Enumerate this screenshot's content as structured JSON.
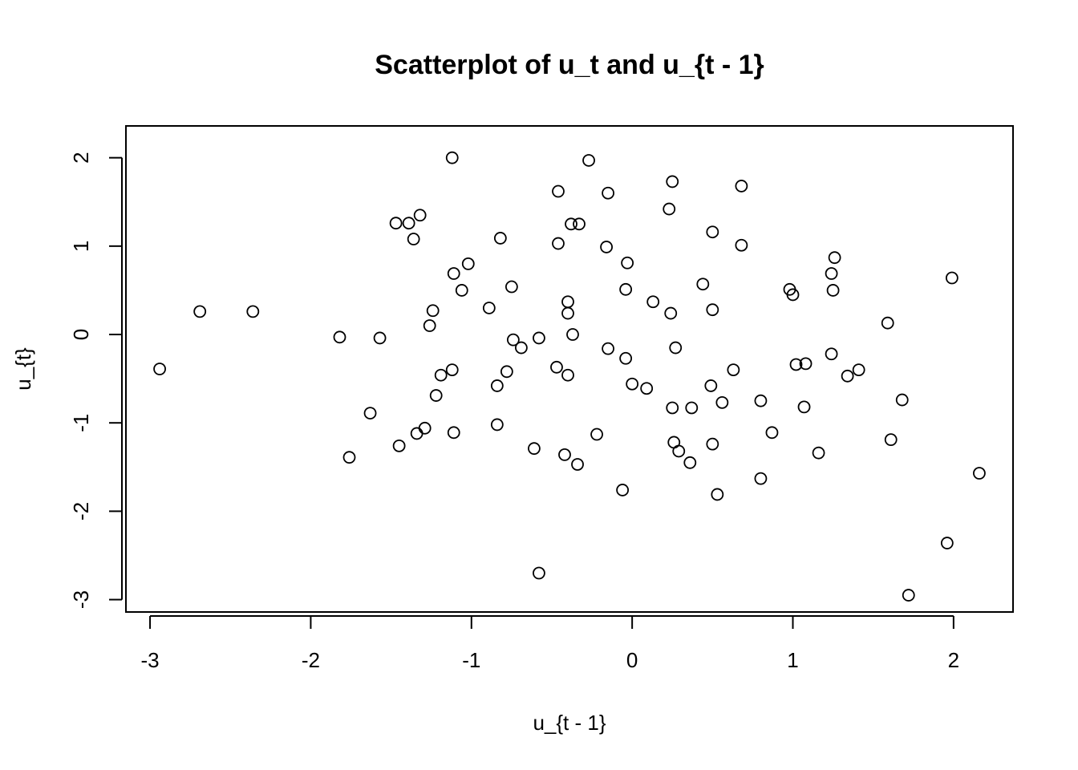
{
  "chart_data": {
    "type": "scatter",
    "title": "Scatterplot of u_t and u_{t - 1}",
    "xlabel": "u_{t - 1}",
    "ylabel": "u_{t}",
    "xlim": [
      -3.15,
      2.37
    ],
    "ylim": [
      -3.14,
      2.36
    ],
    "x_ticks": [
      -3,
      -2,
      -1,
      0,
      1,
      2
    ],
    "x_tick_labels": [
      "-3",
      "-2",
      "-1",
      "0",
      "1",
      "2"
    ],
    "y_ticks": [
      -3,
      -2,
      -1,
      0,
      1,
      2
    ],
    "y_tick_labels": [
      "-3",
      "-2",
      "-1",
      "0",
      "1",
      "2"
    ],
    "grid": false,
    "marker": "open-circle",
    "points": [
      {
        "x": -2.94,
        "y": -0.39
      },
      {
        "x": -2.69,
        "y": 0.26
      },
      {
        "x": -2.36,
        "y": 0.26
      },
      {
        "x": -1.82,
        "y": -0.03
      },
      {
        "x": -1.76,
        "y": -1.39
      },
      {
        "x": -1.63,
        "y": -0.89
      },
      {
        "x": -1.57,
        "y": -0.04
      },
      {
        "x": -1.47,
        "y": 1.26
      },
      {
        "x": -1.45,
        "y": -1.26
      },
      {
        "x": -1.39,
        "y": 1.26
      },
      {
        "x": -1.36,
        "y": 1.08
      },
      {
        "x": -1.34,
        "y": -1.12
      },
      {
        "x": -1.32,
        "y": 1.35
      },
      {
        "x": -1.29,
        "y": -1.06
      },
      {
        "x": -1.26,
        "y": 0.1
      },
      {
        "x": -1.24,
        "y": 0.27
      },
      {
        "x": -1.22,
        "y": -0.69
      },
      {
        "x": -1.19,
        "y": -0.46
      },
      {
        "x": -1.12,
        "y": 2.0
      },
      {
        "x": -1.12,
        "y": -0.4
      },
      {
        "x": -1.11,
        "y": 0.69
      },
      {
        "x": -1.11,
        "y": -1.11
      },
      {
        "x": -1.06,
        "y": 0.5
      },
      {
        "x": -1.02,
        "y": 0.8
      },
      {
        "x": -0.89,
        "y": 0.3
      },
      {
        "x": -0.84,
        "y": -0.58
      },
      {
        "x": -0.84,
        "y": -1.02
      },
      {
        "x": -0.82,
        "y": 1.09
      },
      {
        "x": -0.78,
        "y": -0.42
      },
      {
        "x": -0.75,
        "y": 0.54
      },
      {
        "x": -0.74,
        "y": -0.06
      },
      {
        "x": -0.69,
        "y": -0.15
      },
      {
        "x": -0.61,
        "y": -1.29
      },
      {
        "x": -0.58,
        "y": -0.04
      },
      {
        "x": -0.58,
        "y": -2.7
      },
      {
        "x": -0.47,
        "y": -0.37
      },
      {
        "x": -0.46,
        "y": 1.62
      },
      {
        "x": -0.46,
        "y": 1.03
      },
      {
        "x": -0.42,
        "y": -1.36
      },
      {
        "x": -0.4,
        "y": 0.37
      },
      {
        "x": -0.4,
        "y": 0.24
      },
      {
        "x": -0.4,
        "y": -0.46
      },
      {
        "x": -0.38,
        "y": 1.25
      },
      {
        "x": -0.37,
        "y": 0.0
      },
      {
        "x": -0.34,
        "y": -1.47
      },
      {
        "x": -0.33,
        "y": 1.25
      },
      {
        "x": -0.27,
        "y": 1.97
      },
      {
        "x": -0.22,
        "y": -1.13
      },
      {
        "x": -0.16,
        "y": 0.99
      },
      {
        "x": -0.15,
        "y": 1.6
      },
      {
        "x": -0.15,
        "y": -0.16
      },
      {
        "x": -0.06,
        "y": -1.76
      },
      {
        "x": -0.04,
        "y": -0.27
      },
      {
        "x": -0.04,
        "y": 0.51
      },
      {
        "x": -0.03,
        "y": 0.81
      },
      {
        "x": 0.0,
        "y": -0.56
      },
      {
        "x": 0.09,
        "y": -0.61
      },
      {
        "x": 0.13,
        "y": 0.37
      },
      {
        "x": 0.23,
        "y": 1.42
      },
      {
        "x": 0.24,
        "y": 0.24
      },
      {
        "x": 0.25,
        "y": 1.73
      },
      {
        "x": 0.25,
        "y": -0.83
      },
      {
        "x": 0.26,
        "y": -1.22
      },
      {
        "x": 0.27,
        "y": -0.15
      },
      {
        "x": 0.29,
        "y": -1.32
      },
      {
        "x": 0.36,
        "y": -1.45
      },
      {
        "x": 0.37,
        "y": -0.83
      },
      {
        "x": 0.44,
        "y": 0.57
      },
      {
        "x": 0.49,
        "y": -0.58
      },
      {
        "x": 0.5,
        "y": -1.24
      },
      {
        "x": 0.5,
        "y": 1.16
      },
      {
        "x": 0.5,
        "y": 0.28
      },
      {
        "x": 0.53,
        "y": -1.81
      },
      {
        "x": 0.56,
        "y": -0.77
      },
      {
        "x": 0.63,
        "y": -0.4
      },
      {
        "x": 0.68,
        "y": 1.68
      },
      {
        "x": 0.68,
        "y": 1.01
      },
      {
        "x": 0.8,
        "y": -0.75
      },
      {
        "x": 0.8,
        "y": -1.63
      },
      {
        "x": 0.87,
        "y": -1.11
      },
      {
        "x": 0.98,
        "y": 0.51
      },
      {
        "x": 1.0,
        "y": 0.45
      },
      {
        "x": 1.02,
        "y": -0.34
      },
      {
        "x": 1.07,
        "y": -0.82
      },
      {
        "x": 1.08,
        "y": -0.33
      },
      {
        "x": 1.16,
        "y": -1.34
      },
      {
        "x": 1.24,
        "y": 0.69
      },
      {
        "x": 1.24,
        "y": -0.22
      },
      {
        "x": 1.25,
        "y": 0.5
      },
      {
        "x": 1.26,
        "y": 0.87
      },
      {
        "x": 1.34,
        "y": -0.47
      },
      {
        "x": 1.41,
        "y": -0.4
      },
      {
        "x": 1.59,
        "y": 0.13
      },
      {
        "x": 1.61,
        "y": -1.19
      },
      {
        "x": 1.68,
        "y": -0.74
      },
      {
        "x": 1.72,
        "y": -2.95
      },
      {
        "x": 1.96,
        "y": -2.36
      },
      {
        "x": 1.99,
        "y": 0.64
      },
      {
        "x": 2.16,
        "y": -1.57
      }
    ]
  }
}
